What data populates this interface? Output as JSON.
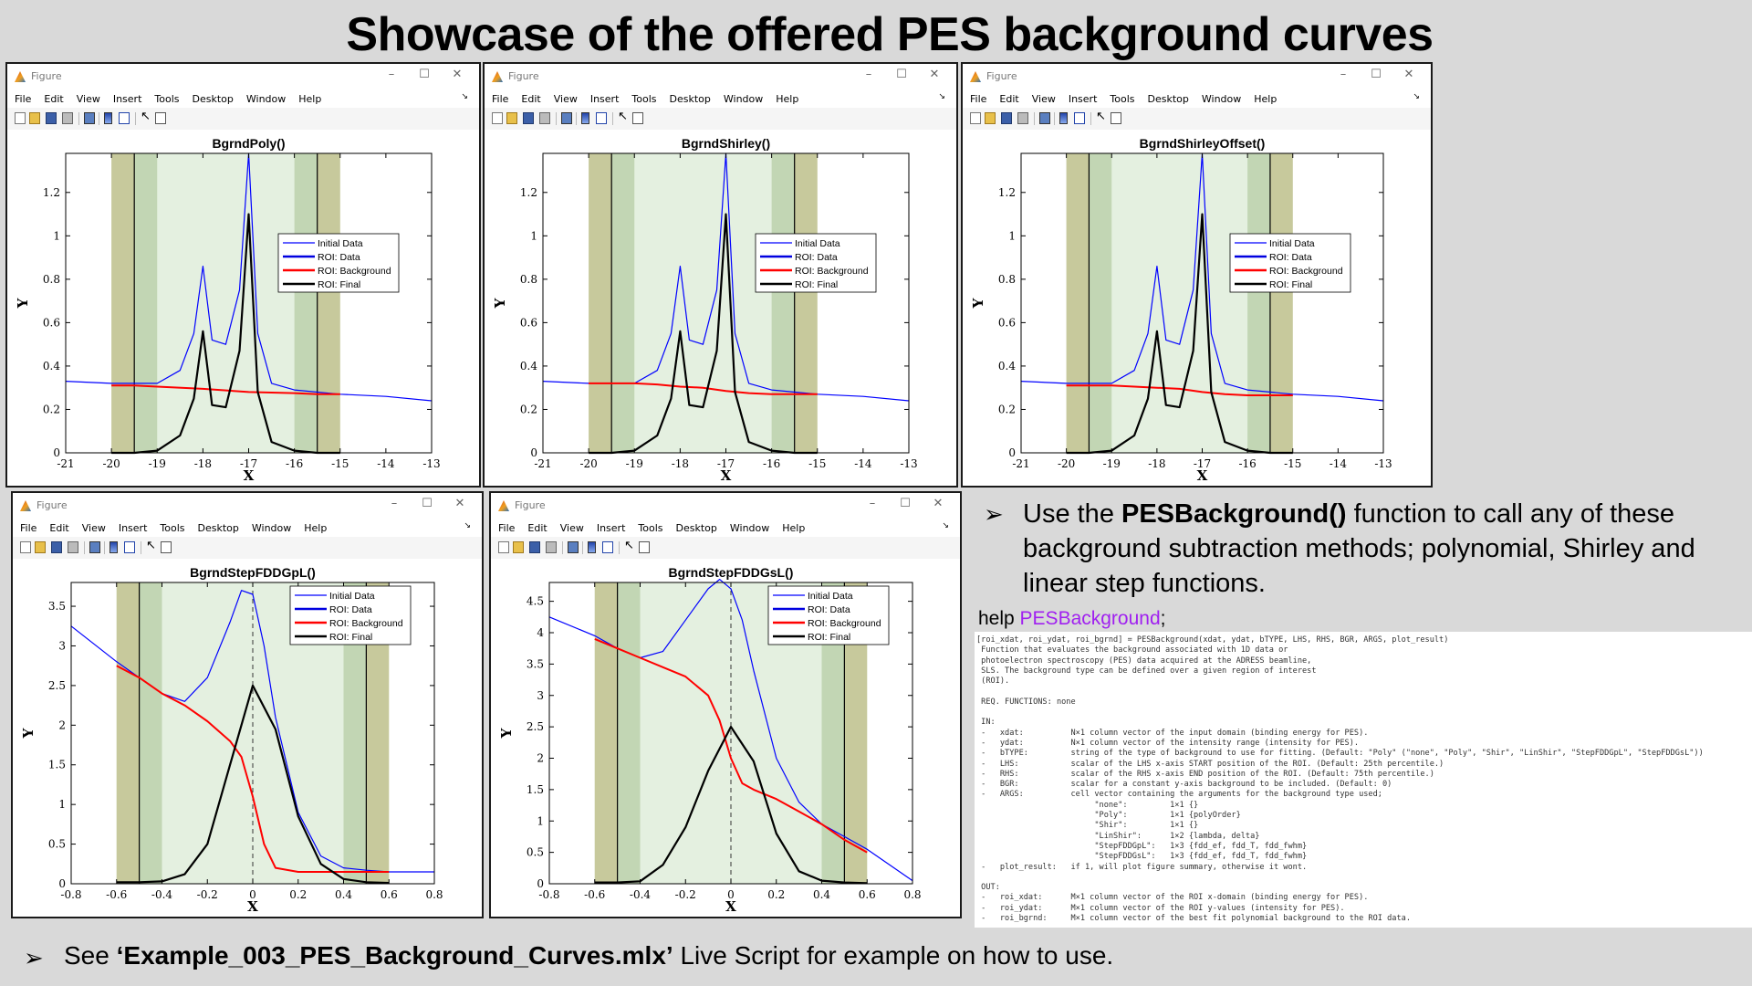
{
  "slide": {
    "title": "Showcase of the offered PES background curves",
    "bullet1_pre": "Use the ",
    "bullet1_bold": "PESBackground()",
    "bullet1_post": " function to call any of these background subtraction methods; polynomial, Shirley and linear step functions.",
    "bullet_marker": "➢",
    "help_prefix": "help ",
    "help_arg": "PESBackground",
    "help_suffix": ";",
    "bottom_pre": "See ",
    "bottom_bold": "‘Example_003_PES_Background_Curves.mlx’",
    "bottom_post": " Live Script for example on how to use."
  },
  "figure_window": {
    "title": "Figure",
    "menu": [
      "File",
      "Edit",
      "View",
      "Insert",
      "Tools",
      "Desktop",
      "Window",
      "Help"
    ],
    "controls": [
      "–",
      "☐",
      "✕"
    ],
    "dock_glyph": "↘"
  },
  "legend_entries": [
    "Initial Data",
    "ROI: Data",
    "ROI: Background",
    "ROI: Final"
  ],
  "colors": {
    "initial": "#0000ff",
    "roi_data": "#0000e0",
    "background": "#ff0000",
    "final": "#000000",
    "roi_fill": "#e4f0e0",
    "side_band": "#c7c99c",
    "inner_band": "#c2d6b4"
  },
  "help_text": [
    "[roi_xdat, roi_ydat, roi_bgrnd] = PESBackground(xdat, ydat, bTYPE, LHS, RHS, BGR, ARGS, plot_result)",
    " Function that evaluates the background associated with 1D data or",
    " photoelectron spectroscopy (PES) data acquired at the ADRESS beamline,",
    " SLS. The background type can be defined over a given region of interest",
    " (ROI).",
    "",
    " REQ. FUNCTIONS: none",
    "",
    " IN:",
    " -   xdat:          N×1 column vector of the input domain (binding energy for PES).",
    " -   ydat:          N×1 column vector of the intensity range (intensity for PES).",
    " -   bTYPE:         string of the type of background to use for fitting. (Default: \"Poly\" (\"none\", \"Poly\", \"Shir\", \"LinShir\", \"StepFDDGpL\", \"StepFDDGsL\"))",
    " -   LHS:           scalar of the LHS x-axis START position of the ROI. (Default: 25th percentile.)",
    " -   RHS:           scalar of the RHS x-axis END position of the ROI. (Default: 75th percentile.)",
    " -   BGR:           scalar for a constant y-axis background to be included. (Default: 0)",
    " -   ARGS:          cell vector containing the arguments for the background type used;",
    "                         \"none\":         1×1 {}",
    "                         \"Poly\":         1×1 {polyOrder}",
    "                         \"Shir\":         1×1 {}",
    "                         \"LinShir\":      1×2 {lambda, delta}",
    "                         \"StepFDDGpL\":   1×3 {fdd_ef, fdd_T, fdd_fwhm}",
    "                         \"StepFDDGsL\":   1×3 {fdd_ef, fdd_T, fdd_fwhm}",
    " -   plot_result:   if 1, will plot figure summary, otherwise it wont.",
    "",
    " OUT:",
    " -   roi_xdat:      M×1 column vector of the ROI x-domain (binding energy for PES).",
    " -   roi_ydat:      M×1 column vector of the ROI y-values (intensity for PES).",
    " -   roi_bgrnd:     M×1 column vector of the best fit polynomial background to the ROI data."
  ],
  "chart_data": [
    {
      "type": "line",
      "title": "BgrndPoly()",
      "xlabel": "X",
      "ylabel": "Y",
      "xlim": [
        -21,
        -13
      ],
      "ylim": [
        0,
        1.38
      ],
      "xticks": [
        -21,
        -20,
        -19,
        -18,
        -17,
        -16,
        -15,
        -14,
        -13
      ],
      "yticks": [
        0,
        0.2,
        0.4,
        0.6,
        0.8,
        1,
        1.2
      ],
      "ytick_labels": [
        "0",
        "0.2",
        "0.4",
        "0.6",
        "0.8",
        "1",
        "1.2"
      ],
      "roi": [
        -20,
        -15
      ],
      "roi_lines": [
        -19.5,
        -15.5
      ],
      "side_bands": [
        [
          -20,
          -19.5
        ],
        [
          -15.5,
          -15
        ]
      ],
      "inner_bands": [
        [
          -19.5,
          -19
        ],
        [
          -16,
          -15.5
        ]
      ],
      "centerline": null,
      "legend": "center-right",
      "series": [
        {
          "name": "Initial Data",
          "x": [
            -21,
            -20,
            -19,
            -18.5,
            -18.2,
            -18,
            -17.8,
            -17.5,
            -17.2,
            -17,
            -16.8,
            -16.5,
            -16,
            -15,
            -14,
            -13
          ],
          "y": [
            0.33,
            0.32,
            0.32,
            0.38,
            0.55,
            0.86,
            0.52,
            0.5,
            0.75,
            1.38,
            0.55,
            0.32,
            0.29,
            0.27,
            0.26,
            0.24
          ]
        },
        {
          "name": "ROI: Background",
          "x": [
            -20,
            -19.5,
            -19,
            -18,
            -17,
            -16,
            -15.5,
            -15
          ],
          "y": [
            0.31,
            0.31,
            0.305,
            0.295,
            0.28,
            0.275,
            0.27,
            0.27
          ]
        },
        {
          "name": "ROI: Final",
          "x": [
            -20,
            -19.5,
            -19,
            -18.5,
            -18.2,
            -18,
            -17.8,
            -17.5,
            -17.2,
            -17,
            -16.8,
            -16.5,
            -16,
            -15.5,
            -15
          ],
          "y": [
            0,
            0,
            0.01,
            0.08,
            0.25,
            0.56,
            0.22,
            0.21,
            0.47,
            1.1,
            0.28,
            0.05,
            0.01,
            0,
            0
          ]
        }
      ]
    },
    {
      "type": "line",
      "title": "BgrndShirley()",
      "xlabel": "X",
      "ylabel": "Y",
      "xlim": [
        -21,
        -13
      ],
      "ylim": [
        0,
        1.38
      ],
      "xticks": [
        -21,
        -20,
        -19,
        -18,
        -17,
        -16,
        -15,
        -14,
        -13
      ],
      "yticks": [
        0,
        0.2,
        0.4,
        0.6,
        0.8,
        1,
        1.2
      ],
      "ytick_labels": [
        "0",
        "0.2",
        "0.4",
        "0.6",
        "0.8",
        "1",
        "1.2"
      ],
      "roi": [
        -20,
        -15
      ],
      "roi_lines": [
        -19.5,
        -15.5
      ],
      "side_bands": [
        [
          -20,
          -19.5
        ],
        [
          -15.5,
          -15
        ]
      ],
      "inner_bands": [
        [
          -19.5,
          -19
        ],
        [
          -16,
          -15.5
        ]
      ],
      "centerline": null,
      "legend": "center-right",
      "series": [
        {
          "name": "Initial Data",
          "x": [
            -21,
            -20,
            -19,
            -18.5,
            -18.2,
            -18,
            -17.8,
            -17.5,
            -17.2,
            -17,
            -16.8,
            -16.5,
            -16,
            -15,
            -14,
            -13
          ],
          "y": [
            0.33,
            0.32,
            0.32,
            0.38,
            0.55,
            0.86,
            0.52,
            0.5,
            0.75,
            1.38,
            0.55,
            0.32,
            0.29,
            0.27,
            0.26,
            0.24
          ]
        },
        {
          "name": "ROI: Background",
          "x": [
            -20,
            -19,
            -18.5,
            -18,
            -17.5,
            -17,
            -16.5,
            -16,
            -15
          ],
          "y": [
            0.32,
            0.32,
            0.315,
            0.305,
            0.3,
            0.285,
            0.275,
            0.27,
            0.27
          ]
        },
        {
          "name": "ROI: Final",
          "x": [
            -20,
            -19.5,
            -19,
            -18.5,
            -18.2,
            -18,
            -17.8,
            -17.5,
            -17.2,
            -17,
            -16.8,
            -16.5,
            -16,
            -15.5,
            -15
          ],
          "y": [
            0,
            0,
            0.01,
            0.08,
            0.25,
            0.56,
            0.22,
            0.21,
            0.47,
            1.1,
            0.28,
            0.05,
            0.01,
            0,
            0
          ]
        }
      ]
    },
    {
      "type": "line",
      "title": "BgrndShirleyOffset()",
      "xlabel": "X",
      "ylabel": "Y",
      "xlim": [
        -21,
        -13
      ],
      "ylim": [
        0,
        1.38
      ],
      "xticks": [
        -21,
        -20,
        -19,
        -18,
        -17,
        -16,
        -15,
        -14,
        -13
      ],
      "yticks": [
        0,
        0.2,
        0.4,
        0.6,
        0.8,
        1,
        1.2
      ],
      "ytick_labels": [
        "0",
        "0.2",
        "0.4",
        "0.6",
        "0.8",
        "1",
        "1.2"
      ],
      "roi": [
        -20,
        -15
      ],
      "roi_lines": [
        -19.5,
        -15.5
      ],
      "side_bands": [
        [
          -20,
          -19.5
        ],
        [
          -15.5,
          -15
        ]
      ],
      "inner_bands": [
        [
          -19.5,
          -19
        ],
        [
          -16,
          -15.5
        ]
      ],
      "centerline": null,
      "legend": "center-right",
      "series": [
        {
          "name": "Initial Data",
          "x": [
            -21,
            -20,
            -19,
            -18.5,
            -18.2,
            -18,
            -17.8,
            -17.5,
            -17.2,
            -17,
            -16.8,
            -16.5,
            -16,
            -15,
            -14,
            -13
          ],
          "y": [
            0.33,
            0.32,
            0.32,
            0.38,
            0.55,
            0.86,
            0.52,
            0.5,
            0.75,
            1.38,
            0.55,
            0.32,
            0.29,
            0.27,
            0.26,
            0.24
          ]
        },
        {
          "name": "ROI: Background",
          "x": [
            -20,
            -19,
            -18.5,
            -18,
            -17.5,
            -17,
            -16.5,
            -16,
            -15
          ],
          "y": [
            0.31,
            0.31,
            0.305,
            0.3,
            0.295,
            0.28,
            0.27,
            0.265,
            0.265
          ]
        },
        {
          "name": "ROI: Final",
          "x": [
            -20,
            -19.5,
            -19,
            -18.5,
            -18.2,
            -18,
            -17.8,
            -17.5,
            -17.2,
            -17,
            -16.8,
            -16.5,
            -16,
            -15.5,
            -15
          ],
          "y": [
            0,
            0,
            0.01,
            0.08,
            0.25,
            0.56,
            0.22,
            0.21,
            0.47,
            1.1,
            0.28,
            0.05,
            0.01,
            0,
            0
          ]
        }
      ]
    },
    {
      "type": "line",
      "title": "BgrndStepFDDGpL()",
      "xlabel": "X",
      "ylabel": "Y",
      "xlim": [
        -0.8,
        0.8
      ],
      "ylim": [
        0,
        3.8
      ],
      "xticks": [
        -0.8,
        -0.6,
        -0.4,
        -0.2,
        0,
        0.2,
        0.4,
        0.6,
        0.8
      ],
      "yticks": [
        0,
        0.5,
        1,
        1.5,
        2,
        2.5,
        3,
        3.5
      ],
      "ytick_labels": [
        "0",
        "0.5",
        "1",
        "1.5",
        "2",
        "2.5",
        "3",
        "3.5"
      ],
      "roi": [
        -0.6,
        0.6
      ],
      "roi_lines": [
        -0.5,
        0.5
      ],
      "side_bands": [
        [
          -0.6,
          -0.5
        ],
        [
          0.5,
          0.6
        ]
      ],
      "inner_bands": [
        [
          -0.5,
          -0.4
        ],
        [
          0.4,
          0.5
        ]
      ],
      "centerline": 0,
      "legend": "top-right",
      "series": [
        {
          "name": "Initial Data",
          "x": [
            -0.8,
            -0.6,
            -0.5,
            -0.4,
            -0.3,
            -0.2,
            -0.1,
            -0.05,
            0,
            0.05,
            0.1,
            0.2,
            0.3,
            0.4,
            0.5,
            0.6,
            0.8
          ],
          "y": [
            3.25,
            2.8,
            2.6,
            2.4,
            2.3,
            2.6,
            3.3,
            3.7,
            3.65,
            3.0,
            2.1,
            0.9,
            0.35,
            0.2,
            0.17,
            0.15,
            0.15
          ]
        },
        {
          "name": "ROI: Background",
          "x": [
            -0.6,
            -0.5,
            -0.4,
            -0.3,
            -0.2,
            -0.1,
            -0.05,
            0,
            0.05,
            0.1,
            0.2,
            0.4,
            0.6
          ],
          "y": [
            2.75,
            2.6,
            2.4,
            2.25,
            2.05,
            1.8,
            1.6,
            1.1,
            0.5,
            0.2,
            0.15,
            0.15,
            0.15
          ]
        },
        {
          "name": "ROI: Final",
          "x": [
            -0.6,
            -0.5,
            -0.4,
            -0.3,
            -0.2,
            -0.1,
            0,
            0.1,
            0.2,
            0.3,
            0.4,
            0.5,
            0.6
          ],
          "y": [
            0.02,
            0.02,
            0.03,
            0.12,
            0.5,
            1.5,
            2.5,
            1.95,
            0.85,
            0.25,
            0.06,
            0.02,
            0.01
          ]
        }
      ]
    },
    {
      "type": "line",
      "title": "BgrndStepFDDGsL()",
      "xlabel": "X",
      "ylabel": "Y",
      "xlim": [
        -0.8,
        0.8
      ],
      "ylim": [
        0,
        4.8
      ],
      "xticks": [
        -0.8,
        -0.6,
        -0.4,
        -0.2,
        0,
        0.2,
        0.4,
        0.6,
        0.8
      ],
      "yticks": [
        0,
        0.5,
        1,
        1.5,
        2,
        2.5,
        3,
        3.5,
        4,
        4.5
      ],
      "ytick_labels": [
        "0",
        "0.5",
        "1",
        "1.5",
        "2",
        "2.5",
        "3",
        "3.5",
        "4",
        "4.5"
      ],
      "roi": [
        -0.6,
        0.6
      ],
      "roi_lines": [
        -0.5,
        0.5
      ],
      "side_bands": [
        [
          -0.6,
          -0.5
        ],
        [
          0.5,
          0.6
        ]
      ],
      "inner_bands": [
        [
          -0.5,
          -0.4
        ],
        [
          0.4,
          0.5
        ]
      ],
      "centerline": 0,
      "legend": "top-right",
      "series": [
        {
          "name": "Initial Data",
          "x": [
            -0.8,
            -0.6,
            -0.5,
            -0.4,
            -0.3,
            -0.2,
            -0.1,
            -0.05,
            0,
            0.05,
            0.1,
            0.2,
            0.3,
            0.4,
            0.5,
            0.6,
            0.8
          ],
          "y": [
            4.25,
            3.95,
            3.75,
            3.6,
            3.7,
            4.2,
            4.7,
            4.85,
            4.7,
            4.2,
            3.4,
            2.0,
            1.3,
            0.95,
            0.75,
            0.55,
            0.05
          ]
        },
        {
          "name": "ROI: Background",
          "x": [
            -0.6,
            -0.5,
            -0.4,
            -0.3,
            -0.2,
            -0.1,
            -0.05,
            0,
            0.05,
            0.1,
            0.2,
            0.3,
            0.4,
            0.5,
            0.6
          ],
          "y": [
            3.9,
            3.75,
            3.6,
            3.45,
            3.3,
            3.0,
            2.6,
            2.0,
            1.6,
            1.5,
            1.35,
            1.15,
            0.95,
            0.7,
            0.5
          ]
        },
        {
          "name": "ROI: Final",
          "x": [
            -0.6,
            -0.5,
            -0.4,
            -0.3,
            -0.2,
            -0.1,
            0,
            0.1,
            0.2,
            0.3,
            0.4,
            0.5,
            0.6
          ],
          "y": [
            0.02,
            0.02,
            0.04,
            0.3,
            0.9,
            1.8,
            2.5,
            1.95,
            0.8,
            0.2,
            0.05,
            0.02,
            0.01
          ]
        }
      ]
    }
  ]
}
